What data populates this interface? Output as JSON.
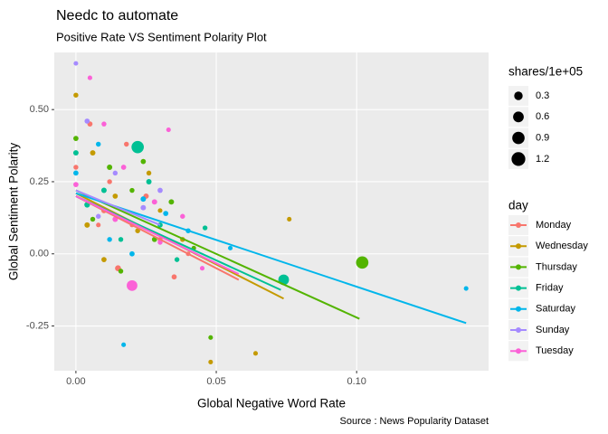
{
  "chart_data": {
    "type": "scatter",
    "title": "Needc to automate",
    "subtitle": "Positive Rate VS Sentiment Polarity Plot",
    "caption": "Source : News Popularity Dataset",
    "x_label": "Global Negative Word Rate",
    "y_label": "Global Sentiment Polarity",
    "xlim": [
      -0.0077,
      0.147
    ],
    "ylim": [
      -0.405,
      0.698
    ],
    "xticks": [
      {
        "value": 0,
        "label": "0.00"
      },
      {
        "value": 0.05,
        "label": "0.05"
      },
      {
        "value": 0.1,
        "label": "0.10"
      }
    ],
    "yticks": [
      {
        "value": -0.25,
        "label": "-0.25"
      },
      {
        "value": 0,
        "label": "0.00"
      },
      {
        "value": 0.25,
        "label": "0.25"
      },
      {
        "value": 0.5,
        "label": "0.50"
      }
    ],
    "grid": true,
    "size_legend": {
      "title": "shares/1e+05",
      "breaks": [
        0.3,
        0.6,
        0.9,
        1.2
      ]
    },
    "color_legend_title": "day",
    "series": [
      {
        "name": "Monday",
        "color": "#F8766D",
        "x": [
          0,
          0.01,
          0.02,
          0.005,
          0.03,
          0.015,
          0.04,
          0.025,
          0.012,
          0.008,
          0.035,
          0.018
        ],
        "y": [
          0.3,
          0.15,
          0.1,
          0.45,
          0.05,
          -0.05,
          0.0,
          0.2,
          0.25,
          0.1,
          -0.08,
          0.38
        ],
        "size": [
          0.03,
          0.05,
          0.02,
          0.04,
          0.03,
          0.08,
          0.02,
          0.05,
          0.03,
          0.02,
          0.04,
          0.03
        ],
        "fit_x": [
          0,
          0.058
        ],
        "fit_y": [
          0.2,
          -0.09
        ]
      },
      {
        "name": "Wednesday",
        "color": "#C49A00",
        "x": [
          0,
          0.006,
          0.014,
          0.022,
          0.03,
          0.048,
          0.064,
          0.076,
          0.01,
          0.026,
          0.004,
          0.038
        ],
        "y": [
          0.55,
          0.35,
          0.2,
          0.08,
          0.15,
          -0.375,
          -0.345,
          0.12,
          -0.02,
          0.28,
          0.1,
          0.05
        ],
        "size": [
          0.03,
          0.05,
          0.04,
          0.03,
          0.02,
          0.02,
          0.02,
          0.02,
          0.04,
          0.03,
          0.05,
          0.03
        ],
        "fit_x": [
          0,
          0.074
        ],
        "fit_y": [
          0.21,
          -0.155
        ]
      },
      {
        "name": "Thursday",
        "color": "#53B400",
        "x": [
          0,
          0.012,
          0.02,
          0.028,
          0.048,
          0.102,
          0.006,
          0.034,
          0.016,
          0.042,
          0.024
        ],
        "y": [
          0.4,
          0.3,
          0.22,
          0.05,
          -0.29,
          -0.03,
          0.12,
          0.18,
          -0.06,
          0.02,
          0.32
        ],
        "size": [
          0.04,
          0.05,
          0.03,
          0.04,
          0.02,
          0.9,
          0.03,
          0.05,
          0.03,
          0.02,
          0.04
        ],
        "fit_x": [
          0,
          0.101
        ],
        "fit_y": [
          0.22,
          -0.225
        ]
      },
      {
        "name": "Friday",
        "color": "#00C094",
        "x": [
          0,
          0.022,
          0.074,
          0.01,
          0.03,
          0.046,
          0.016,
          0.004,
          0.036,
          0.026
        ],
        "y": [
          0.35,
          0.37,
          -0.09,
          0.22,
          0.1,
          0.09,
          0.05,
          0.17,
          -0.02,
          0.25
        ],
        "size": [
          0.05,
          0.9,
          0.6,
          0.05,
          0.04,
          0.03,
          0.03,
          0.06,
          0.03,
          0.05
        ],
        "fit_x": [
          0,
          0.073
        ],
        "fit_y": [
          0.2,
          -0.125
        ]
      },
      {
        "name": "Saturday",
        "color": "#00B6EB",
        "x": [
          0,
          0.017,
          0.139,
          0.008,
          0.024,
          0.032,
          0.012,
          0.055,
          0.02,
          0.04
        ],
        "y": [
          0.28,
          -0.315,
          -0.12,
          0.38,
          0.19,
          0.14,
          0.05,
          0.02,
          0.0,
          0.08
        ],
        "size": [
          0.04,
          0.02,
          0.02,
          0.03,
          0.05,
          0.04,
          0.03,
          0.02,
          0.04,
          0.03
        ],
        "fit_x": [
          0,
          0.139
        ],
        "fit_y": [
          0.21,
          -0.24
        ]
      },
      {
        "name": "Sunday",
        "color": "#A58AFF",
        "x": [
          0,
          0.004,
          0.014,
          0.024,
          0.008,
          0.03
        ],
        "y": [
          0.66,
          0.46,
          0.28,
          0.16,
          0.13,
          0.22
        ],
        "size": [
          0.02,
          0.04,
          0.03,
          0.05,
          0.03,
          0.04
        ],
        "fit_x": [
          0,
          0.03
        ],
        "fit_y": [
          0.22,
          0.1
        ]
      },
      {
        "name": "Tuesday",
        "color": "#FB61D7",
        "x": [
          0,
          0.005,
          0.014,
          0.02,
          0.03,
          0.017,
          0.045,
          0.01,
          0.028,
          0.038,
          0.033
        ],
        "y": [
          0.24,
          0.61,
          0.12,
          -0.11,
          0.04,
          0.3,
          -0.05,
          0.45,
          0.18,
          0.13,
          0.43
        ],
        "size": [
          0.04,
          0.02,
          0.05,
          0.6,
          0.03,
          0.04,
          0.02,
          0.03,
          0.05,
          0.03,
          0.02
        ],
        "fit_x": [
          0,
          0.058
        ],
        "fit_y": [
          0.2,
          -0.07
        ]
      }
    ]
  }
}
